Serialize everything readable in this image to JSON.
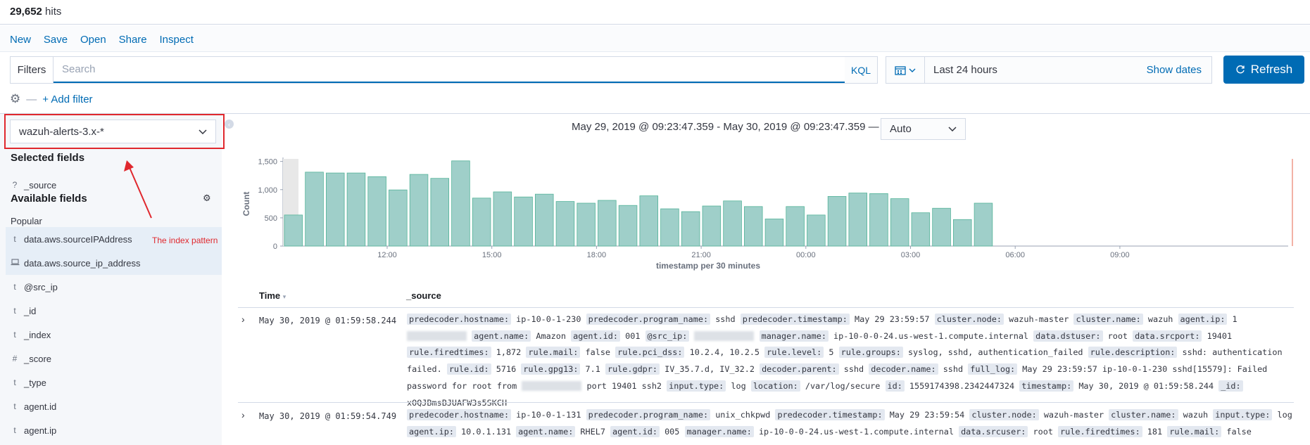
{
  "hits": {
    "count": "29,652",
    "label": " hits"
  },
  "nav": {
    "new": "New",
    "save": "Save",
    "open": "Open",
    "share": "Share",
    "inspect": "Inspect"
  },
  "query": {
    "filters_label": "Filters",
    "placeholder": "Search",
    "language": "KQL"
  },
  "time": {
    "range": "Last 24 hours",
    "show_dates": "Show dates",
    "refresh": "Refresh"
  },
  "filter_row": {
    "add_filter": "+ Add filter"
  },
  "sidebar": {
    "index_pattern": "wazuh-alerts-3.x-*",
    "selected_heading": "Selected fields",
    "selected": [
      {
        "type": "?",
        "name": "_source"
      }
    ],
    "available_heading": "Available fields",
    "popular_label": "Popular",
    "popular": [
      {
        "type": "t",
        "name": "data.aws.sourceIPAddress"
      },
      {
        "type": "geo",
        "name": "data.aws.source_ip_address"
      }
    ],
    "fields": [
      {
        "type": "t",
        "name": "@src_ip"
      },
      {
        "type": "t",
        "name": "_id"
      },
      {
        "type": "t",
        "name": "_index"
      },
      {
        "type": "#",
        "name": "_score"
      },
      {
        "type": "t",
        "name": "_type"
      },
      {
        "type": "t",
        "name": "agent.id"
      },
      {
        "type": "t",
        "name": "agent.ip"
      }
    ]
  },
  "annotation": {
    "text": "The index pattern",
    "color": "#e0282e"
  },
  "histogram": {
    "range_text": "May 29, 2019 @ 09:23:47.359 - May 30, 2019 @ 09:23:47.359 —",
    "interval": "Auto"
  },
  "chart_data": {
    "type": "bar",
    "ylabel": "Count",
    "xlabel": "timestamp per 30 minutes",
    "ylim": [
      0,
      1600
    ],
    "yticks": [
      "0",
      "500",
      "1,000",
      "1,500"
    ],
    "xticks": [
      "12:00",
      "15:00",
      "18:00",
      "21:00",
      "00:00",
      "03:00",
      "06:00",
      "09:00"
    ],
    "values": [
      550,
      1310,
      1295,
      1295,
      1230,
      995,
      1270,
      1200,
      1510,
      850,
      960,
      870,
      920,
      790,
      760,
      810,
      720,
      890,
      660,
      610,
      710,
      800,
      700,
      480,
      700,
      550,
      880,
      940,
      930,
      840,
      590,
      670,
      470,
      760
    ],
    "bar_color": "#9fcfc9",
    "bar_stroke": "#54b399"
  },
  "table": {
    "col_time": "Time",
    "col_source": "_source",
    "rows": [
      {
        "time": "May 30, 2019 @ 01:59:58.244",
        "fields": [
          [
            "predecoder.hostname:",
            "ip-10-0-1-230"
          ],
          [
            "predecoder.program_name:",
            "sshd"
          ],
          [
            "predecoder.timestamp:",
            "May 29 23:59:57"
          ],
          [
            "cluster.node:",
            "wazuh-master"
          ],
          [
            "cluster.name:",
            "wazuh"
          ],
          [
            "agent.ip:",
            "1"
          ],
          [
            "agent.name:",
            "Amazon"
          ],
          [
            "agent.id:",
            "001"
          ],
          [
            "@src_ip:",
            ""
          ],
          [
            "manager.name:",
            "ip-10-0-0-24.us-west-1.compute.internal"
          ],
          [
            "data.dstuser:",
            "root"
          ],
          [
            "data.srcport:",
            "19401"
          ],
          [
            "rule.firedtimes:",
            "1,872"
          ],
          [
            "rule.mail:",
            "false"
          ],
          [
            "rule.pci_dss:",
            "10.2.4, 10.2.5"
          ],
          [
            "rule.level:",
            "5"
          ],
          [
            "rule.groups:",
            "syslog, sshd, authentication_failed"
          ],
          [
            "rule.description:",
            "sshd: authentication failed."
          ],
          [
            "rule.id:",
            "5716"
          ],
          [
            "rule.gpg13:",
            "7.1"
          ],
          [
            "rule.gdpr:",
            "IV_35.7.d, IV_32.2"
          ],
          [
            "decoder.parent:",
            "sshd"
          ],
          [
            "decoder.name:",
            "sshd"
          ],
          [
            "full_log:",
            "May 29 23:59:57 ip-10-0-1-230 sshd[15579]: Failed password for root from"
          ],
          [
            "",
            "port 19401 ssh2"
          ],
          [
            "input.type:",
            "log"
          ],
          [
            "location:",
            "/var/log/secure"
          ],
          [
            "id:",
            "1559174398.2342447324"
          ],
          [
            "timestamp:",
            "May 30, 2019 @ 01:59:58.244"
          ],
          [
            "_id:",
            "xOQJBmsBJUAFW3s5SKCH"
          ]
        ]
      },
      {
        "time": "May 30, 2019 @ 01:59:54.749",
        "fields": [
          [
            "predecoder.hostname:",
            "ip-10-0-1-131"
          ],
          [
            "predecoder.program_name:",
            "unix_chkpwd"
          ],
          [
            "predecoder.timestamp:",
            "May 29 23:59:54"
          ],
          [
            "cluster.node:",
            "wazuh-master"
          ],
          [
            "cluster.name:",
            "wazuh"
          ],
          [
            "input.type:",
            "log"
          ],
          [
            "agent.ip:",
            "10.0.1.131"
          ],
          [
            "agent.name:",
            "RHEL7"
          ],
          [
            "agent.id:",
            "005"
          ],
          [
            "manager.name:",
            "ip-10-0-0-24.us-west-1.compute.internal"
          ],
          [
            "data.srcuser:",
            "root"
          ],
          [
            "rule.firedtimes:",
            "181"
          ],
          [
            "rule.mail:",
            "false"
          ]
        ]
      }
    ]
  }
}
